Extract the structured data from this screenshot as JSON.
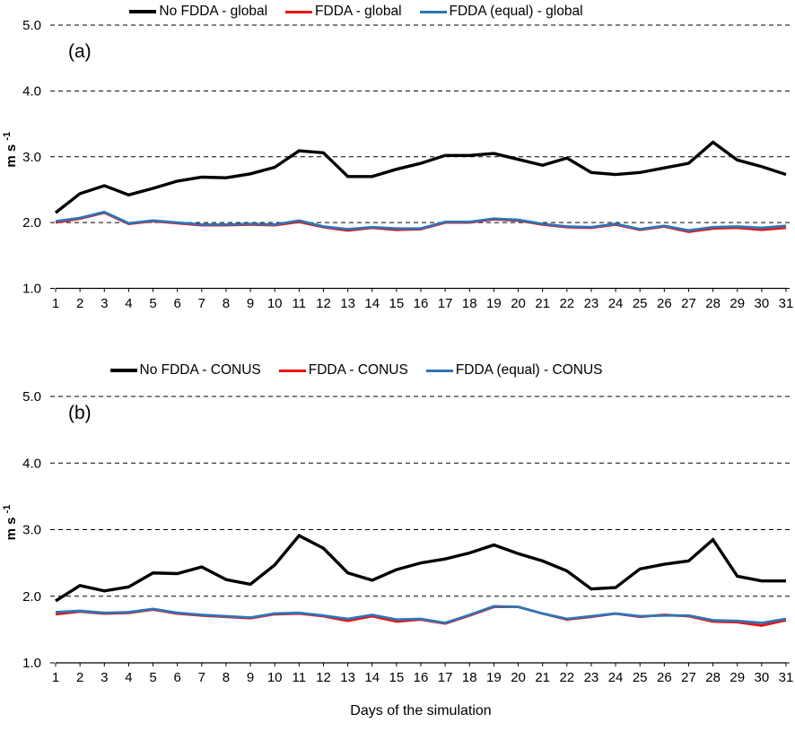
{
  "figure": {
    "xlabel": "Days of the simulation",
    "ylabel": "m s",
    "ylabel_superscript": "-1"
  },
  "chart_data": [
    {
      "type": "line",
      "panel_label": "(a)",
      "legend_position": "top-center",
      "grid": "horizontal-dashed",
      "xlabel": "Days of the simulation",
      "ylabel": "m s",
      "ylabel_sup": "-1",
      "ylim": [
        1.0,
        5.0
      ],
      "yticks": [
        1.0,
        2.0,
        3.0,
        4.0,
        5.0
      ],
      "x": [
        1,
        2,
        3,
        4,
        5,
        6,
        7,
        8,
        9,
        10,
        11,
        12,
        13,
        14,
        15,
        16,
        17,
        18,
        19,
        20,
        21,
        22,
        23,
        24,
        25,
        26,
        27,
        28,
        29,
        30,
        31
      ],
      "series": [
        {
          "name": "No FDDA - global",
          "color": "#000000",
          "values": [
            2.15,
            2.44,
            2.56,
            2.42,
            2.52,
            2.63,
            2.69,
            2.68,
            2.74,
            2.84,
            3.09,
            3.06,
            2.7,
            2.7,
            2.81,
            2.9,
            3.02,
            3.02,
            3.05,
            2.96,
            2.87,
            2.98,
            2.76,
            2.73,
            2.76,
            2.83,
            2.9,
            3.22,
            2.95,
            2.85,
            2.73
          ]
        },
        {
          "name": "FDDA - global",
          "color": "#EE1111",
          "values": [
            2.0,
            2.06,
            2.15,
            1.98,
            2.02,
            1.99,
            1.96,
            1.96,
            1.97,
            1.96,
            2.01,
            1.93,
            1.88,
            1.92,
            1.89,
            1.9,
            2.0,
            2.0,
            2.05,
            2.03,
            1.97,
            1.93,
            1.92,
            1.97,
            1.89,
            1.94,
            1.86,
            1.91,
            1.92,
            1.89,
            1.92
          ]
        },
        {
          "name": "FDDA (equal) - global",
          "color": "#2E75B6",
          "values": [
            2.02,
            2.07,
            2.16,
            1.99,
            2.03,
            2.0,
            1.97,
            1.97,
            1.98,
            1.97,
            2.03,
            1.94,
            1.9,
            1.93,
            1.91,
            1.91,
            2.01,
            2.01,
            2.06,
            2.04,
            1.98,
            1.94,
            1.93,
            1.98,
            1.9,
            1.95,
            1.88,
            1.93,
            1.94,
            1.92,
            1.95
          ]
        }
      ]
    },
    {
      "type": "line",
      "panel_label": "(b)",
      "legend_position": "top-center",
      "grid": "horizontal-dashed",
      "xlabel": "Days of the simulation",
      "ylabel": "m s",
      "ylabel_sup": "-1",
      "ylim": [
        1.0,
        5.0
      ],
      "yticks": [
        1.0,
        2.0,
        3.0,
        4.0,
        5.0
      ],
      "x": [
        1,
        2,
        3,
        4,
        5,
        6,
        7,
        8,
        9,
        10,
        11,
        12,
        13,
        14,
        15,
        16,
        17,
        18,
        19,
        20,
        21,
        22,
        23,
        24,
        25,
        26,
        27,
        28,
        29,
        30,
        31
      ],
      "series": [
        {
          "name": "No FDDA - CONUS",
          "color": "#000000",
          "values": [
            1.93,
            2.16,
            2.08,
            2.14,
            2.35,
            2.34,
            2.44,
            2.25,
            2.18,
            2.47,
            2.91,
            2.72,
            2.35,
            2.24,
            2.4,
            2.5,
            2.56,
            2.65,
            2.77,
            2.64,
            2.53,
            2.38,
            2.11,
            2.13,
            2.41,
            2.48,
            2.53,
            2.85,
            2.3,
            2.23,
            2.23
          ]
        },
        {
          "name": "FDDA - CONUS",
          "color": "#EE1111",
          "values": [
            1.73,
            1.77,
            1.74,
            1.75,
            1.8,
            1.74,
            1.71,
            1.69,
            1.67,
            1.73,
            1.74,
            1.7,
            1.63,
            1.7,
            1.62,
            1.65,
            1.59,
            1.71,
            1.84,
            1.84,
            1.74,
            1.65,
            1.69,
            1.74,
            1.69,
            1.72,
            1.7,
            1.62,
            1.61,
            1.56,
            1.64
          ]
        },
        {
          "name": "FDDA (equal) - CONUS",
          "color": "#2E75B6",
          "values": [
            1.76,
            1.78,
            1.75,
            1.76,
            1.81,
            1.75,
            1.72,
            1.7,
            1.68,
            1.74,
            1.75,
            1.71,
            1.66,
            1.72,
            1.65,
            1.66,
            1.6,
            1.72,
            1.85,
            1.84,
            1.74,
            1.66,
            1.7,
            1.74,
            1.7,
            1.71,
            1.71,
            1.64,
            1.63,
            1.6,
            1.66
          ]
        }
      ]
    }
  ]
}
